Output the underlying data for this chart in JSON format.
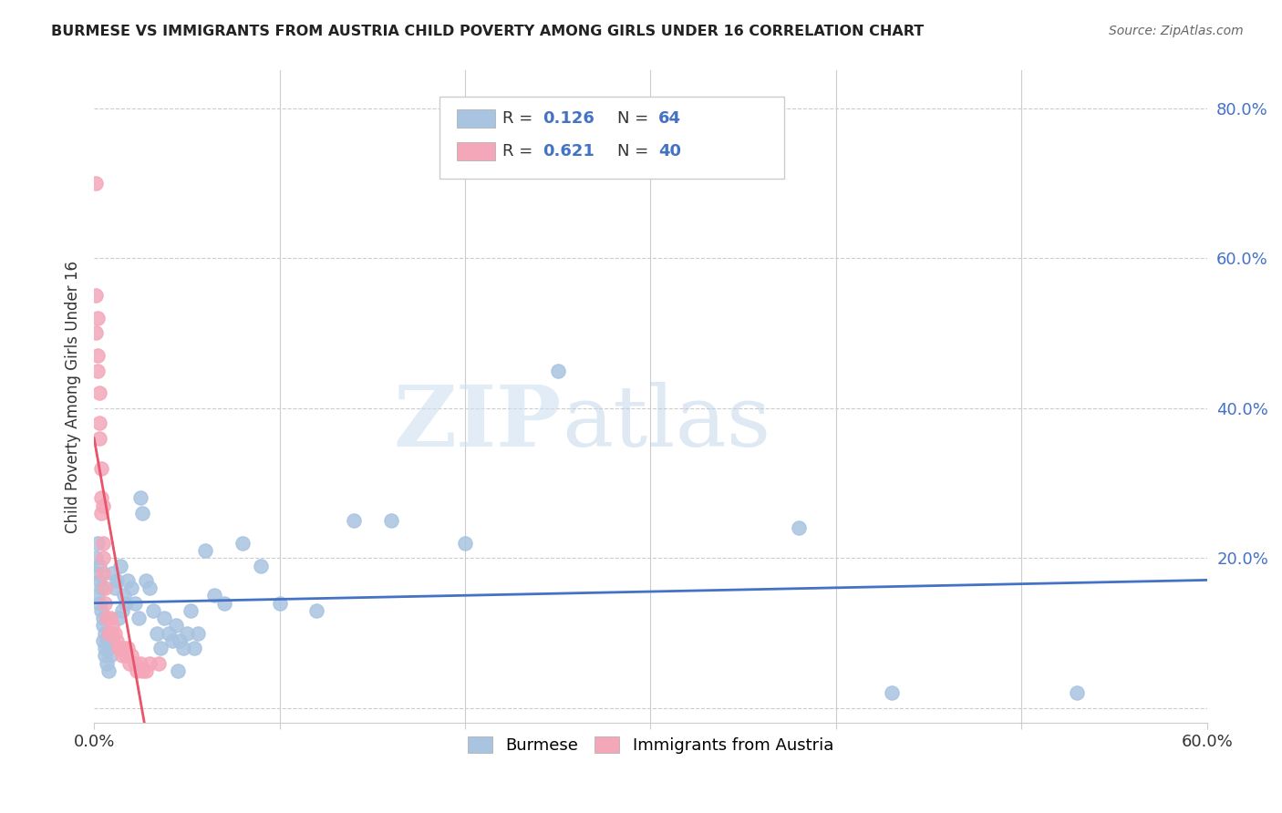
{
  "title": "BURMESE VS IMMIGRANTS FROM AUSTRIA CHILD POVERTY AMONG GIRLS UNDER 16 CORRELATION CHART",
  "source": "Source: ZipAtlas.com",
  "ylabel": "Child Poverty Among Girls Under 16",
  "xlim": [
    0.0,
    0.6
  ],
  "ylim": [
    -0.02,
    0.85
  ],
  "yticks": [
    0.0,
    0.2,
    0.4,
    0.6,
    0.8
  ],
  "burmese_color": "#a8c4e0",
  "austria_color": "#f4a7b9",
  "burmese_line_color": "#4472c4",
  "austria_line_color": "#e8546a",
  "R_burmese": 0.126,
  "N_burmese": 64,
  "R_austria": 0.621,
  "N_austria": 40,
  "legend_label_burmese": "Burmese",
  "legend_label_austria": "Immigrants from Austria",
  "watermark_zip": "ZIP",
  "watermark_atlas": "atlas",
  "burmese_x": [
    0.001,
    0.001,
    0.002,
    0.002,
    0.003,
    0.003,
    0.003,
    0.004,
    0.004,
    0.005,
    0.005,
    0.005,
    0.006,
    0.006,
    0.006,
    0.007,
    0.007,
    0.008,
    0.008,
    0.009,
    0.01,
    0.011,
    0.012,
    0.013,
    0.014,
    0.015,
    0.016,
    0.017,
    0.018,
    0.02,
    0.022,
    0.024,
    0.025,
    0.026,
    0.028,
    0.03,
    0.032,
    0.034,
    0.036,
    0.038,
    0.04,
    0.042,
    0.044,
    0.045,
    0.046,
    0.048,
    0.05,
    0.052,
    0.054,
    0.056,
    0.06,
    0.065,
    0.07,
    0.08,
    0.09,
    0.1,
    0.12,
    0.14,
    0.16,
    0.2,
    0.25,
    0.38,
    0.43,
    0.53
  ],
  "burmese_y": [
    0.18,
    0.2,
    0.15,
    0.22,
    0.17,
    0.19,
    0.14,
    0.16,
    0.13,
    0.12,
    0.11,
    0.09,
    0.1,
    0.08,
    0.07,
    0.09,
    0.06,
    0.08,
    0.05,
    0.07,
    0.18,
    0.16,
    0.17,
    0.12,
    0.19,
    0.13,
    0.15,
    0.14,
    0.17,
    0.16,
    0.14,
    0.12,
    0.28,
    0.26,
    0.17,
    0.16,
    0.13,
    0.1,
    0.08,
    0.12,
    0.1,
    0.09,
    0.11,
    0.05,
    0.09,
    0.08,
    0.1,
    0.13,
    0.08,
    0.1,
    0.21,
    0.15,
    0.14,
    0.22,
    0.19,
    0.14,
    0.13,
    0.25,
    0.25,
    0.22,
    0.45,
    0.24,
    0.02,
    0.02
  ],
  "austria_x": [
    0.001,
    0.001,
    0.001,
    0.002,
    0.002,
    0.002,
    0.003,
    0.003,
    0.003,
    0.004,
    0.004,
    0.004,
    0.005,
    0.005,
    0.005,
    0.005,
    0.006,
    0.006,
    0.007,
    0.008,
    0.009,
    0.01,
    0.01,
    0.011,
    0.012,
    0.013,
    0.014,
    0.015,
    0.016,
    0.017,
    0.018,
    0.019,
    0.02,
    0.022,
    0.023,
    0.025,
    0.026,
    0.028,
    0.03,
    0.035
  ],
  "austria_y": [
    0.7,
    0.55,
    0.5,
    0.52,
    0.47,
    0.45,
    0.42,
    0.38,
    0.36,
    0.32,
    0.28,
    0.26,
    0.27,
    0.22,
    0.2,
    0.18,
    0.16,
    0.14,
    0.12,
    0.1,
    0.12,
    0.1,
    0.11,
    0.1,
    0.09,
    0.08,
    0.08,
    0.07,
    0.08,
    0.07,
    0.08,
    0.06,
    0.07,
    0.06,
    0.05,
    0.06,
    0.05,
    0.05,
    0.06,
    0.06
  ]
}
